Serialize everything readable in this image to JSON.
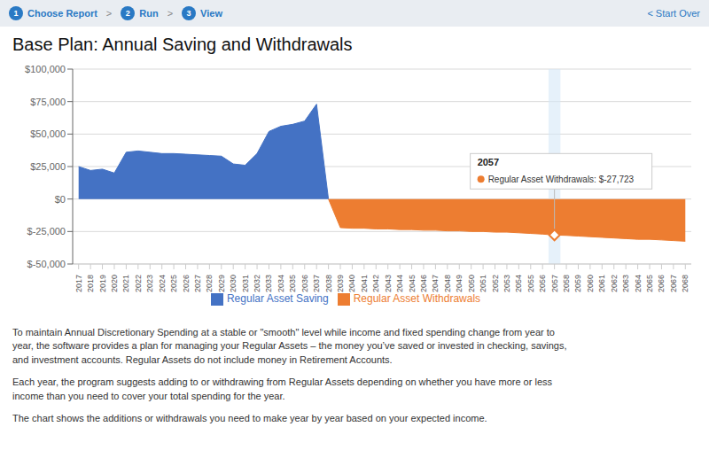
{
  "chart_data": {
    "type": "area",
    "title": "Base Plan: Annual Saving and Withdrawals",
    "x": [
      2017,
      2018,
      2019,
      2020,
      2021,
      2022,
      2023,
      2024,
      2025,
      2026,
      2027,
      2028,
      2029,
      2030,
      2031,
      2032,
      2033,
      2034,
      2035,
      2036,
      2037,
      2038,
      2039,
      2040,
      2041,
      2042,
      2043,
      2044,
      2045,
      2046,
      2047,
      2048,
      2049,
      2050,
      2051,
      2052,
      2053,
      2054,
      2055,
      2056,
      2057,
      2058,
      2059,
      2060,
      2061,
      2062,
      2063,
      2064,
      2065,
      2066,
      2067,
      2068
    ],
    "series": [
      {
        "name": "Regular Asset Saving",
        "color": "#4472c4",
        "values": [
          25000,
          22000,
          23000,
          20000,
          36000,
          37000,
          36000,
          35000,
          35000,
          34500,
          34000,
          33500,
          33000,
          27000,
          26000,
          35000,
          52000,
          56000,
          57500,
          60000,
          73000,
          0,
          null,
          null,
          null,
          null,
          null,
          null,
          null,
          null,
          null,
          null,
          null,
          null,
          null,
          null,
          null,
          null,
          null,
          null,
          null,
          null,
          null,
          null,
          null,
          null,
          null,
          null,
          null,
          null,
          null,
          null
        ]
      },
      {
        "name": "Regular Asset Withdrawals",
        "color": "#ed7d31",
        "values": [
          null,
          null,
          null,
          null,
          null,
          null,
          null,
          null,
          null,
          null,
          null,
          null,
          null,
          null,
          null,
          null,
          null,
          null,
          null,
          null,
          null,
          0,
          -22000,
          -22500,
          -22500,
          -23000,
          -23000,
          -23500,
          -23500,
          -24000,
          -24000,
          -24500,
          -24500,
          -25000,
          -25000,
          -25500,
          -25500,
          -26000,
          -26500,
          -27000,
          -27723,
          -28000,
          -28500,
          -29000,
          -29500,
          -30000,
          -30500,
          -31000,
          -31000,
          -31500,
          -32000,
          -32500
        ]
      }
    ],
    "xlim": [
      2016.5,
      2068.5
    ],
    "xticks": [
      2017,
      2018,
      2019,
      2020,
      2021,
      2022,
      2023,
      2024,
      2025,
      2026,
      2027,
      2028,
      2029,
      2030,
      2031,
      2032,
      2033,
      2034,
      2035,
      2036,
      2037,
      2038,
      2039,
      2040,
      2041,
      2042,
      2043,
      2044,
      2045,
      2046,
      2047,
      2048,
      2049,
      2050,
      2051,
      2052,
      2053,
      2054,
      2055,
      2056,
      2057,
      2058,
      2059,
      2060,
      2061,
      2062,
      2063,
      2064,
      2065,
      2066,
      2067,
      2068
    ],
    "ylim": [
      -50000,
      100000
    ],
    "yticks": [
      {
        "value": -50000,
        "label": "$-50,000"
      },
      {
        "value": -25000,
        "label": "$-25,000"
      },
      {
        "value": 0,
        "label": "$0"
      },
      {
        "value": 25000,
        "label": "$25,000"
      },
      {
        "value": 50000,
        "label": "$50,000"
      },
      {
        "value": 75000,
        "label": "$75,000"
      },
      {
        "value": 100000,
        "label": "$100,000"
      }
    ],
    "grid": true,
    "legend": "bottom",
    "highlight": {
      "x": 2057,
      "color": "#d6e8f7"
    },
    "tooltip": {
      "title": "2057",
      "text": "Regular Asset Withdrawals: $-27,723"
    },
    "header": {
      "steps": [
        {
          "number": 1,
          "label": "Choose Report"
        },
        {
          "number": 2,
          "label": "Run"
        },
        {
          "number": 3,
          "label": "View"
        }
      ],
      "separator": ">",
      "link": "< Start Over",
      "color": "#2979c4",
      "background": "#e9edf2"
    },
    "paragraphs": [
      "To maintain Annual Discretionary Spending at a stable or \"smooth\" level while income and fixed spending change from year to\nyear, the software provides a plan for managing your Regular Assets – the money you’ve saved or invested in checking, savings,\nand investment accounts. Regular Assets do not include money in Retirement Accounts.",
      "Each year, the program suggests adding to or withdrawing from Regular Assets depending on whether you have more or less\nincome than you need to cover your total spending for the year.",
      "The chart shows the additions or withdrawals you need to make year by year based on your expected income."
    ]
  }
}
